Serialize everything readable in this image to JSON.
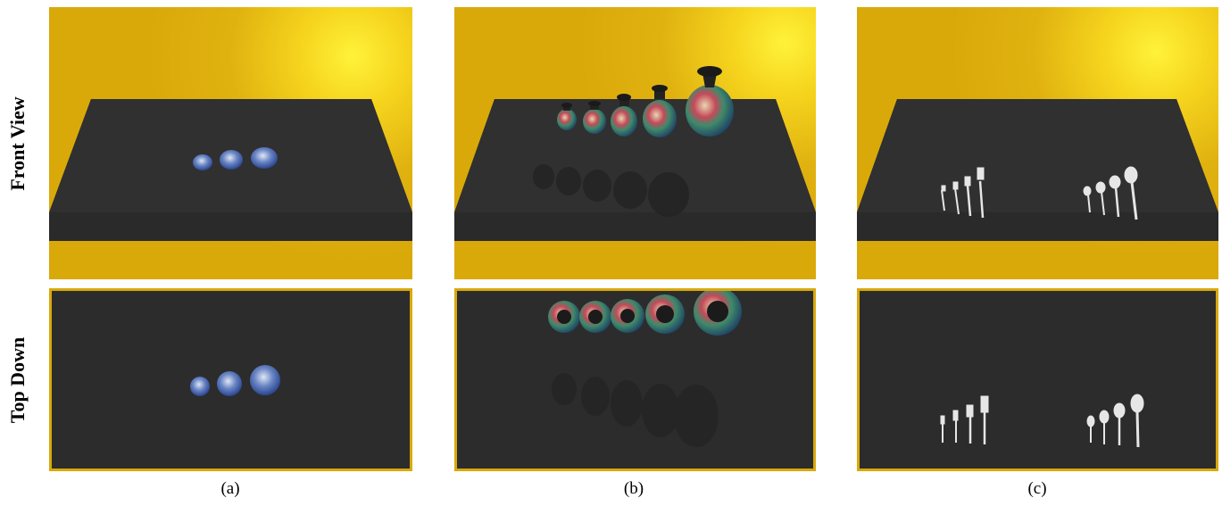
{
  "row_labels": {
    "front": "Front View",
    "top": "Top Down"
  },
  "columns": [
    {
      "label": "(a)",
      "object": "plates",
      "front_count": 3,
      "top_count": 3
    },
    {
      "label": "(b)",
      "object": "vases",
      "front_count": 5,
      "top_count": 5
    },
    {
      "label": "(c)",
      "object": "forks-and-spoons",
      "forks": 4,
      "spoons": 4
    }
  ],
  "colors": {
    "sky": "#d9a90a",
    "sun": "#fff23a",
    "table": "#2c2c2c",
    "border": "#d9a90a",
    "plate": "#3a5aa6",
    "vase_body": "#2a6f7a",
    "cutlery": "#e8e8e8"
  }
}
